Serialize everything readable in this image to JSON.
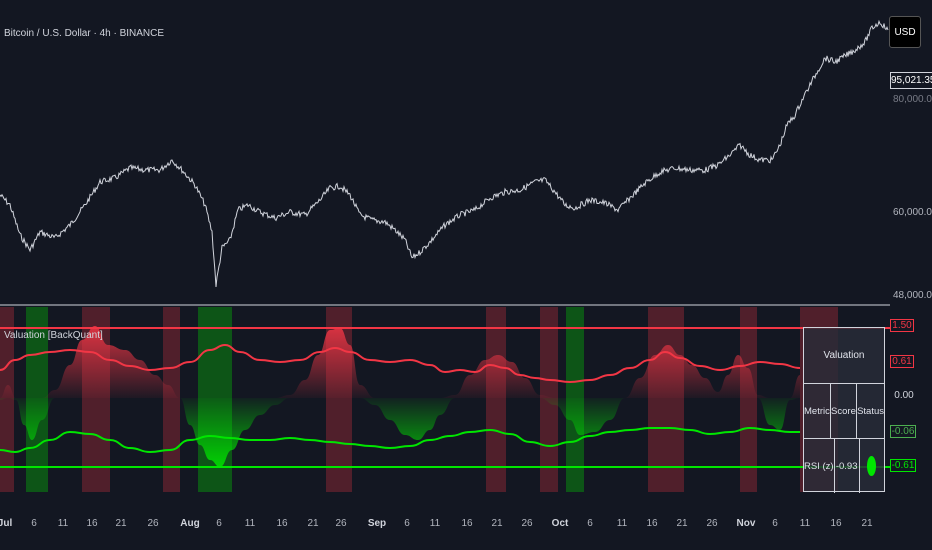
{
  "header": {
    "symbol_title": "Bitcoin / U.S. Dollar · 4h · BINANCE",
    "indicator_title": "Valuation [BackQuant]"
  },
  "price_axis": {
    "currency_button": "USD",
    "current_price": "95,021.35",
    "hidden_label": "80,000.00",
    "ticks": [
      "60,000.00",
      "48,000.00"
    ]
  },
  "indicator_axis": {
    "tags": [
      {
        "text": "1.50",
        "color": "#f23645"
      },
      {
        "text": "0.61",
        "color": "#f23645"
      },
      {
        "text": "0.00",
        "color": "#d1d4dc"
      },
      {
        "text": "-0.06",
        "color": "#4caf50"
      },
      {
        "text": "-0.61",
        "color": "#4caf50"
      }
    ]
  },
  "time_axis": {
    "labels": [
      {
        "text": "Jul",
        "bold": true
      },
      {
        "text": "6",
        "bold": false
      },
      {
        "text": "11",
        "bold": false
      },
      {
        "text": "16",
        "bold": false
      },
      {
        "text": "21",
        "bold": false
      },
      {
        "text": "26",
        "bold": false
      },
      {
        "text": "Aug",
        "bold": true
      },
      {
        "text": "6",
        "bold": false
      },
      {
        "text": "11",
        "bold": false
      },
      {
        "text": "16",
        "bold": false
      },
      {
        "text": "21",
        "bold": false
      },
      {
        "text": "26",
        "bold": false
      },
      {
        "text": "Sep",
        "bold": true
      },
      {
        "text": "6",
        "bold": false
      },
      {
        "text": "11",
        "bold": false
      },
      {
        "text": "16",
        "bold": false
      },
      {
        "text": "21",
        "bold": false
      },
      {
        "text": "26",
        "bold": false
      },
      {
        "text": "Oct",
        "bold": true
      },
      {
        "text": "6",
        "bold": false
      },
      {
        "text": "11",
        "bold": false
      },
      {
        "text": "16",
        "bold": false
      },
      {
        "text": "21",
        "bold": false
      },
      {
        "text": "26",
        "bold": false
      },
      {
        "text": "Nov",
        "bold": true
      },
      {
        "text": "6",
        "bold": false
      },
      {
        "text": "11",
        "bold": false
      },
      {
        "text": "16",
        "bold": false
      },
      {
        "text": "21",
        "bold": false
      }
    ]
  },
  "valuation_table": {
    "title": "Valuation",
    "headers": [
      "Metric",
      "Score",
      "Status"
    ],
    "rows": [
      {
        "metric": "RSI (z)",
        "score": "-0.93",
        "status_color": "#00e600"
      }
    ]
  },
  "colors": {
    "background": "#131722",
    "price_line": "#d1d4dc",
    "overvalued": "#f23645",
    "undervalued": "#00e600"
  }
}
